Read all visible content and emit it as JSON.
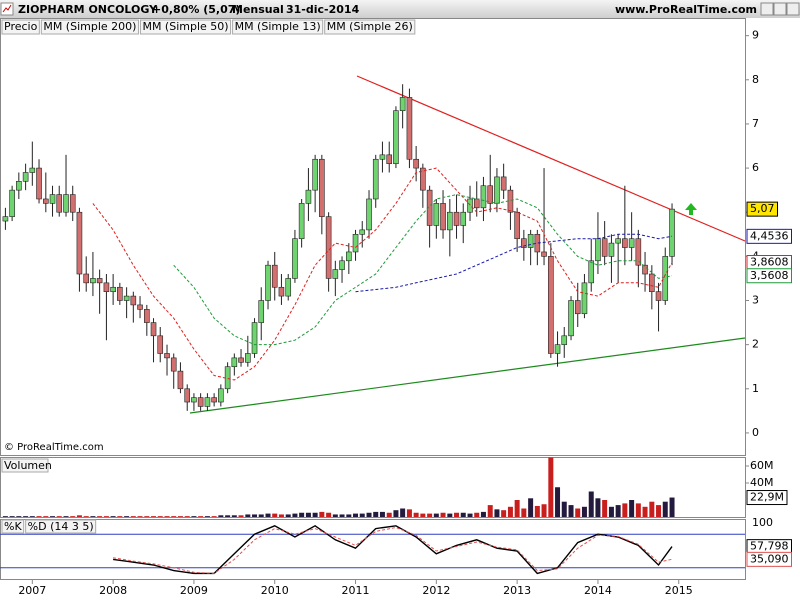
{
  "chart_data": {
    "type": "candlestick",
    "title": "ZIOPHARM ONCOLOGY",
    "change": "+0,80% (5,07)",
    "period": "Mensual",
    "date": "31-dic-2014",
    "site": "www.ProRealTime.com",
    "copyright": "© ProRealTime.com",
    "name": "Precio",
    "up_color": "#6fd36f",
    "down_color": "#d27070",
    "xlim": [
      2006.6,
      2015.82
    ],
    "xticks": [
      2007,
      2008,
      2009,
      2010,
      2011,
      2012,
      2013,
      2014,
      2015
    ],
    "ylim": [
      -0.5,
      9.4
    ],
    "yticks": [
      0,
      1,
      2,
      3,
      4,
      5,
      6,
      7,
      8,
      9
    ],
    "marker": {
      "value": 5.07,
      "label": "5,07"
    },
    "x": [
      2006.667,
      2006.75,
      2006.833,
      2006.917,
      2007,
      2007.083,
      2007.167,
      2007.25,
      2007.333,
      2007.417,
      2007.5,
      2007.583,
      2007.667,
      2007.75,
      2007.833,
      2007.917,
      2008,
      2008.083,
      2008.167,
      2008.25,
      2008.333,
      2008.417,
      2008.5,
      2008.583,
      2008.667,
      2008.75,
      2008.833,
      2008.917,
      2009,
      2009.083,
      2009.167,
      2009.25,
      2009.333,
      2009.417,
      2009.5,
      2009.583,
      2009.667,
      2009.75,
      2009.833,
      2009.917,
      2010,
      2010.083,
      2010.167,
      2010.25,
      2010.333,
      2010.417,
      2010.5,
      2010.583,
      2010.667,
      2010.75,
      2010.833,
      2010.917,
      2011,
      2011.083,
      2011.167,
      2011.25,
      2011.333,
      2011.417,
      2011.5,
      2011.583,
      2011.667,
      2011.75,
      2011.833,
      2011.917,
      2012,
      2012.083,
      2012.167,
      2012.25,
      2012.333,
      2012.417,
      2012.5,
      2012.583,
      2012.667,
      2012.75,
      2012.833,
      2012.917,
      2013,
      2013.083,
      2013.167,
      2013.25,
      2013.333,
      2013.417,
      2013.5,
      2013.583,
      2013.667,
      2013.75,
      2013.833,
      2013.917,
      2014,
      2014.083,
      2014.167,
      2014.25,
      2014.333,
      2014.417,
      2014.5,
      2014.583,
      2014.667,
      2014.75,
      2014.833,
      2014.917
    ],
    "ohlc": [
      [
        4.8,
        5.1,
        4.6,
        4.9
      ],
      [
        4.9,
        5.6,
        4.8,
        5.5
      ],
      [
        5.5,
        5.9,
        5.3,
        5.7
      ],
      [
        5.7,
        6.1,
        5.5,
        5.9
      ],
      [
        5.9,
        6.6,
        5.6,
        6.0
      ],
      [
        6.0,
        6.2,
        5.2,
        5.3
      ],
      [
        5.3,
        5.9,
        5.0,
        5.2
      ],
      [
        5.2,
        5.6,
        4.9,
        5.4
      ],
      [
        5.4,
        5.6,
        4.9,
        5.0
      ],
      [
        5.0,
        6.3,
        4.9,
        5.4
      ],
      [
        5.4,
        5.6,
        4.8,
        5.0
      ],
      [
        5.0,
        5.1,
        3.2,
        3.6
      ],
      [
        3.6,
        4.0,
        3.2,
        3.4
      ],
      [
        3.4,
        4.1,
        3.1,
        3.5
      ],
      [
        3.5,
        3.7,
        2.7,
        3.4
      ],
      [
        3.4,
        3.6,
        2.1,
        3.2
      ],
      [
        3.2,
        3.6,
        2.9,
        3.3
      ],
      [
        3.3,
        3.4,
        2.9,
        3.0
      ],
      [
        3.0,
        3.3,
        2.6,
        3.1
      ],
      [
        3.1,
        3.2,
        2.5,
        2.9
      ],
      [
        2.9,
        3.1,
        2.6,
        2.8
      ],
      [
        2.8,
        2.9,
        2.2,
        2.5
      ],
      [
        2.5,
        2.6,
        1.6,
        2.2
      ],
      [
        2.2,
        2.4,
        1.6,
        1.8
      ],
      [
        1.8,
        2.0,
        1.3,
        1.7
      ],
      [
        1.7,
        1.8,
        1.0,
        1.4
      ],
      [
        1.4,
        1.6,
        0.9,
        1.0
      ],
      [
        1.0,
        1.1,
        0.5,
        0.7
      ],
      [
        0.7,
        0.9,
        0.5,
        0.8
      ],
      [
        0.8,
        0.9,
        0.5,
        0.6
      ],
      [
        0.6,
        0.9,
        0.5,
        0.8
      ],
      [
        0.8,
        0.9,
        0.6,
        0.7
      ],
      [
        0.7,
        1.1,
        0.6,
        1.0
      ],
      [
        1.0,
        1.6,
        0.9,
        1.5
      ],
      [
        1.5,
        1.8,
        1.3,
        1.7
      ],
      [
        1.7,
        1.9,
        1.5,
        1.6
      ],
      [
        1.6,
        2.2,
        1.5,
        1.8
      ],
      [
        1.8,
        2.6,
        1.7,
        2.5
      ],
      [
        2.5,
        3.3,
        2.1,
        3.0
      ],
      [
        3.0,
        3.9,
        2.8,
        3.8
      ],
      [
        3.8,
        4.1,
        3.0,
        3.3
      ],
      [
        3.3,
        3.6,
        2.9,
        3.1
      ],
      [
        3.1,
        3.6,
        3.0,
        3.5
      ],
      [
        3.5,
        4.6,
        3.4,
        4.4
      ],
      [
        4.4,
        5.3,
        4.2,
        5.2
      ],
      [
        5.2,
        6.0,
        4.8,
        5.5
      ],
      [
        5.5,
        6.3,
        5.0,
        6.2
      ],
      [
        6.2,
        6.3,
        4.5,
        4.9
      ],
      [
        4.9,
        5.0,
        3.2,
        3.5
      ],
      [
        3.5,
        3.9,
        3.1,
        3.7
      ],
      [
        3.7,
        4.0,
        3.4,
        3.9
      ],
      [
        3.9,
        4.3,
        3.6,
        4.1
      ],
      [
        4.1,
        4.6,
        3.9,
        4.5
      ],
      [
        4.5,
        4.8,
        4.2,
        4.6
      ],
      [
        4.6,
        5.5,
        4.4,
        5.3
      ],
      [
        5.3,
        6.3,
        5.1,
        6.2
      ],
      [
        6.2,
        6.6,
        5.9,
        6.3
      ],
      [
        6.3,
        6.6,
        5.9,
        6.1
      ],
      [
        6.1,
        7.4,
        6.0,
        7.3
      ],
      [
        7.3,
        7.9,
        6.9,
        7.6
      ],
      [
        7.6,
        7.8,
        6.0,
        6.2
      ],
      [
        6.2,
        6.5,
        5.7,
        6.0
      ],
      [
        6.0,
        6.1,
        5.1,
        5.5
      ],
      [
        5.5,
        5.6,
        4.2,
        4.7
      ],
      [
        4.7,
        5.3,
        4.4,
        5.2
      ],
      [
        5.2,
        5.5,
        4.4,
        4.6
      ],
      [
        4.6,
        5.3,
        4.0,
        5.0
      ],
      [
        5.0,
        5.4,
        4.4,
        4.7
      ],
      [
        4.7,
        5.2,
        4.3,
        5.0
      ],
      [
        5.0,
        5.6,
        4.8,
        5.3
      ],
      [
        5.3,
        5.7,
        4.9,
        5.1
      ],
      [
        5.1,
        5.8,
        4.8,
        5.6
      ],
      [
        5.6,
        6.3,
        5.0,
        5.2
      ],
      [
        5.2,
        6.0,
        5.0,
        5.8
      ],
      [
        5.8,
        6.1,
        5.3,
        5.5
      ],
      [
        5.5,
        5.6,
        4.6,
        5.0
      ],
      [
        5.0,
        5.1,
        4.1,
        4.4
      ],
      [
        4.4,
        4.6,
        3.9,
        4.2
      ],
      [
        4.2,
        4.6,
        3.8,
        4.5
      ],
      [
        4.5,
        4.6,
        3.8,
        4.1
      ],
      [
        4.1,
        6.0,
        3.8,
        4.0
      ],
      [
        4.0,
        4.3,
        1.7,
        1.8
      ],
      [
        1.8,
        2.3,
        1.5,
        2.0
      ],
      [
        2.0,
        2.4,
        1.7,
        2.2
      ],
      [
        2.2,
        3.1,
        2.1,
        3.0
      ],
      [
        3.0,
        3.4,
        2.4,
        2.7
      ],
      [
        2.7,
        3.6,
        2.6,
        3.4
      ],
      [
        3.4,
        4.4,
        3.2,
        3.9
      ],
      [
        3.9,
        5.0,
        3.6,
        4.4
      ],
      [
        4.4,
        4.8,
        3.8,
        4.0
      ],
      [
        4.0,
        4.5,
        3.4,
        4.3
      ],
      [
        4.3,
        4.5,
        3.4,
        4.4
      ],
      [
        4.4,
        5.6,
        3.8,
        4.2
      ],
      [
        4.2,
        5.0,
        3.9,
        4.4
      ],
      [
        4.4,
        4.6,
        3.3,
        3.8
      ],
      [
        3.8,
        4.1,
        3.2,
        3.6
      ],
      [
        3.6,
        3.8,
        2.8,
        3.2
      ],
      [
        3.2,
        3.4,
        2.3,
        3.0
      ],
      [
        3.0,
        4.2,
        2.9,
        4.0
      ],
      [
        4.0,
        5.2,
        3.8,
        5.07
      ]
    ],
    "series": [
      {
        "name": "MM (Simple 200)",
        "color": "#000000",
        "x": [],
        "values": []
      },
      {
        "name": "MM (Simple 50)",
        "color": "#1a1aa8",
        "marker": {
          "value": 4.4536,
          "label": "4,4536"
        },
        "x": [
          2011,
          2011.25,
          2011.5,
          2011.75,
          2012,
          2012.25,
          2012.5,
          2012.75,
          2013,
          2013.25,
          2013.5,
          2013.75,
          2014,
          2014.25,
          2014.5,
          2014.75,
          2014.917
        ],
        "values": [
          3.2,
          3.25,
          3.3,
          3.4,
          3.5,
          3.6,
          3.8,
          4.0,
          4.2,
          4.3,
          4.35,
          4.4,
          4.4,
          4.5,
          4.5,
          4.4,
          4.4536
        ]
      },
      {
        "name": "MM (Simple 13)",
        "color": "#e02020",
        "marker": {
          "value": 3.8608,
          "label": "3,8608"
        },
        "x": [
          2007.75,
          2008,
          2008.25,
          2008.5,
          2008.75,
          2009,
          2009.25,
          2009.5,
          2009.75,
          2010,
          2010.25,
          2010.5,
          2010.75,
          2011,
          2011.25,
          2011.5,
          2011.75,
          2012,
          2012.25,
          2012.5,
          2012.75,
          2013,
          2013.25,
          2013.5,
          2013.75,
          2014,
          2014.25,
          2014.5,
          2014.75,
          2014.917
        ],
        "values": [
          5.2,
          4.6,
          3.8,
          3.1,
          2.6,
          1.9,
          1.3,
          1.2,
          1.5,
          2.1,
          2.9,
          3.8,
          4.3,
          4.2,
          4.6,
          5.2,
          5.9,
          6.0,
          5.5,
          5.0,
          5.1,
          5.0,
          4.8,
          3.9,
          3.2,
          3.1,
          3.4,
          3.4,
          3.3,
          3.8608
        ]
      },
      {
        "name": "MM (Simple 26)",
        "color": "#1e9a3a",
        "marker": {
          "value": 3.5608,
          "label": "3,5608"
        },
        "x": [
          2008.75,
          2009,
          2009.25,
          2009.5,
          2009.75,
          2010,
          2010.25,
          2010.5,
          2010.75,
          2011,
          2011.25,
          2011.5,
          2011.75,
          2012,
          2012.25,
          2012.5,
          2012.75,
          2013,
          2013.25,
          2013.5,
          2013.75,
          2014,
          2014.25,
          2014.5,
          2014.75,
          2014.917
        ],
        "values": [
          3.8,
          3.3,
          2.6,
          2.2,
          2.0,
          2.0,
          2.1,
          2.4,
          3.0,
          3.3,
          3.6,
          4.2,
          4.8,
          5.3,
          5.4,
          5.3,
          5.2,
          5.3,
          5.1,
          4.5,
          4.0,
          3.8,
          3.9,
          3.9,
          3.5,
          3.5608
        ]
      }
    ],
    "volume": {
      "type": "bar",
      "name": "Volumen",
      "up_color": "#241a3e",
      "down_color": "#c81e1e",
      "ylim": [
        0,
        69.4
      ],
      "yticks": [
        {
          "value": 40,
          "label": "40M"
        },
        {
          "value": 60,
          "label": "60M"
        }
      ],
      "marker": {
        "value": 22.9,
        "label": "22,9M"
      },
      "values": [
        1,
        1,
        1,
        1,
        1,
        1,
        1,
        1,
        1,
        1,
        1,
        2,
        1,
        1,
        1,
        1,
        1,
        1,
        1,
        1,
        1,
        1,
        1,
        1,
        1,
        1,
        1,
        1,
        1,
        1,
        1,
        1,
        2,
        2,
        2,
        2,
        3,
        3,
        3,
        4,
        4,
        3,
        3,
        4,
        5,
        5,
        5,
        6,
        5,
        3,
        3,
        3,
        4,
        4,
        5,
        6,
        6,
        5,
        8,
        10,
        9,
        5,
        4,
        4,
        4,
        5,
        4,
        5,
        5,
        4,
        5,
        6,
        14,
        9,
        8,
        12,
        20,
        10,
        22,
        13,
        15,
        70,
        35,
        18,
        14,
        10,
        12,
        30,
        22,
        20,
        12,
        14,
        16,
        20,
        16,
        12,
        18,
        14,
        18,
        22.9
      ]
    },
    "stochastic": {
      "type": "line",
      "ylim": [
        0,
        100
      ],
      "yticks": [
        100
      ],
      "levels": [
        20,
        80
      ],
      "x": [
        2008,
        2008.25,
        2008.5,
        2008.75,
        2009,
        2009.25,
        2009.5,
        2009.75,
        2010,
        2010.25,
        2010.5,
        2010.75,
        2011,
        2011.25,
        2011.5,
        2011.75,
        2012,
        2012.25,
        2012.5,
        2012.75,
        2013,
        2013.25,
        2013.5,
        2013.75,
        2014,
        2014.25,
        2014.5,
        2014.75,
        2014.917
      ],
      "series": [
        {
          "name": "%K",
          "color": "#000000",
          "marker": {
            "value": 57.798,
            "label": "57,798"
          },
          "values": [
            35,
            30,
            25,
            15,
            10,
            10,
            45,
            80,
            95,
            75,
            95,
            70,
            55,
            90,
            95,
            75,
            45,
            60,
            70,
            55,
            50,
            10,
            20,
            65,
            80,
            75,
            60,
            25,
            57.798
          ]
        },
        {
          "name": "%D (14 3 5)",
          "color": "#e05050",
          "marker": {
            "value": 35.09,
            "label": "35,090"
          },
          "values": [
            38,
            32,
            27,
            20,
            12,
            10,
            35,
            70,
            90,
            80,
            90,
            75,
            60,
            85,
            92,
            78,
            50,
            58,
            66,
            57,
            52,
            15,
            18,
            55,
            78,
            76,
            62,
            30,
            35.09
          ]
        }
      ]
    }
  }
}
